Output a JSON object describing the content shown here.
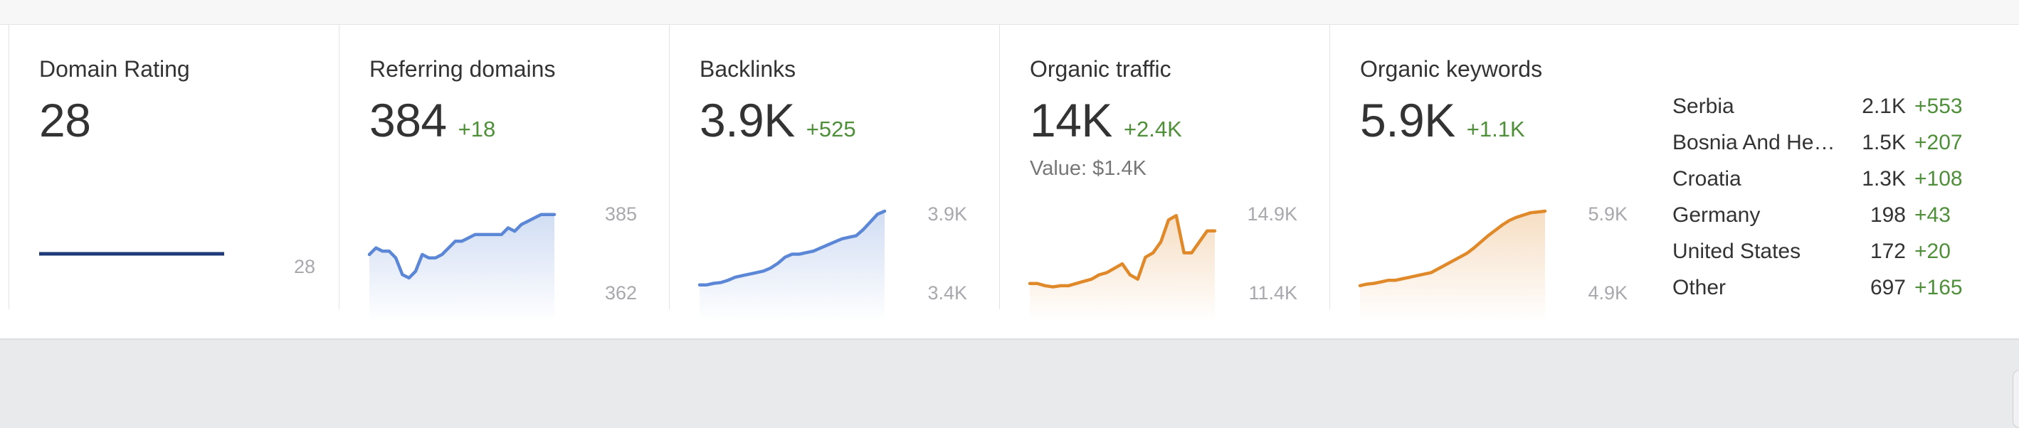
{
  "metrics": {
    "domain_rating": {
      "title": "Domain Rating",
      "value": "28",
      "axis_value": "28"
    },
    "referring_domains": {
      "title": "Referring domains",
      "value": "384",
      "delta": "+18",
      "axis_max": "385",
      "axis_min": "362"
    },
    "backlinks": {
      "title": "Backlinks",
      "value": "3.9K",
      "delta": "+525",
      "axis_max": "3.9K",
      "axis_min": "3.4K"
    },
    "organic_traffic": {
      "title": "Organic traffic",
      "value": "14K",
      "delta": "+2.4K",
      "value_note": "Value: $1.4K",
      "axis_max": "14.9K",
      "axis_min": "11.4K"
    },
    "organic_keywords": {
      "title": "Organic keywords",
      "value": "5.9K",
      "delta": "+1.1K",
      "axis_max": "5.9K",
      "axis_min": "4.9K"
    }
  },
  "countries": [
    {
      "name": "Serbia",
      "value": "2.1K",
      "delta": "+553"
    },
    {
      "name": "Bosnia And He…",
      "value": "1.5K",
      "delta": "+207"
    },
    {
      "name": "Croatia",
      "value": "1.3K",
      "delta": "+108"
    },
    {
      "name": "Germany",
      "value": "198",
      "delta": "+43"
    },
    {
      "name": "United States",
      "value": "172",
      "delta": "+20"
    },
    {
      "name": "Other",
      "value": "697",
      "delta": "+165"
    }
  ],
  "sparklines": {
    "referring_domains": [
      372,
      374,
      373,
      373,
      371,
      366,
      365,
      367,
      372,
      371,
      371,
      372,
      374,
      376,
      376,
      377,
      378,
      378,
      378,
      378,
      378,
      380,
      379,
      381,
      382,
      383,
      384,
      384,
      384
    ],
    "backlinks": [
      3420,
      3420,
      3430,
      3435,
      3450,
      3470,
      3480,
      3490,
      3500,
      3510,
      3530,
      3560,
      3600,
      3620,
      3620,
      3630,
      3640,
      3660,
      3680,
      3700,
      3720,
      3730,
      3740,
      3780,
      3830,
      3880,
      3900
    ],
    "organic_traffic": [
      11600,
      11600,
      11500,
      11450,
      11500,
      11500,
      11600,
      11700,
      11800,
      12000,
      12100,
      12300,
      12500,
      12000,
      11800,
      12800,
      13000,
      13500,
      14500,
      14700,
      13000,
      13000,
      13500,
      14000,
      14000
    ],
    "organic_keywords": [
      4930,
      4950,
      4960,
      4980,
      5000,
      5000,
      5020,
      5040,
      5060,
      5080,
      5100,
      5150,
      5200,
      5250,
      5300,
      5350,
      5420,
      5500,
      5580,
      5650,
      5720,
      5780,
      5820,
      5850,
      5880,
      5890,
      5900
    ]
  },
  "colors": {
    "blue": "#5b87d6",
    "dr_line": "#1f3a78",
    "orange": "#e0892a",
    "positive": "#4f8f3a",
    "muted": "#a8a8ad"
  }
}
